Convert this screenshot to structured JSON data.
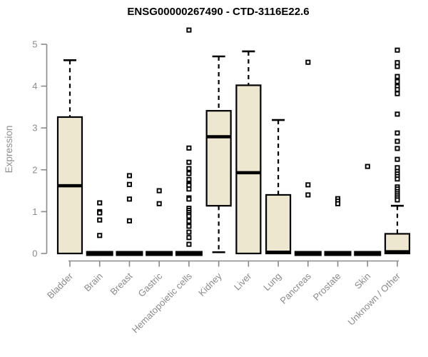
{
  "title": "ENSG00000267490 - CTD-3116E22.6",
  "colors": {
    "background": "#ffffff",
    "box_fill": "#ece7ce",
    "box_stroke": "#000000",
    "median": "#000000",
    "whisker": "#000000",
    "outlier_stroke": "#000000",
    "outlier_fill": "#ffffff",
    "axis": "#8a8a8a",
    "axis_text": "#8a8a8a",
    "title_text": "#000000"
  },
  "chart_data": {
    "type": "boxplot",
    "title": "ENSG00000267490 - CTD-3116E22.6",
    "xlabel": "",
    "ylabel": "Expression",
    "ylim": [
      0,
      5.4
    ],
    "yticks": [
      0,
      1,
      2,
      3,
      4,
      5
    ],
    "grid": false,
    "legend": false,
    "categories": [
      "Bladder",
      "Brain",
      "Breast",
      "Gastric",
      "Hematopoietic cells",
      "Kidney",
      "Liver",
      "Lung",
      "Pancreas",
      "Prostate",
      "Skin",
      "Unknown / Other"
    ],
    "series": [
      {
        "name": "Bladder",
        "q1": 0,
        "median": 1.62,
        "q3": 3.26,
        "whisker_low": 0,
        "whisker_high": 4.62,
        "outliers": []
      },
      {
        "name": "Brain",
        "q1": 0,
        "median": 0,
        "q3": 0,
        "whisker_low": 0,
        "whisker_high": 0,
        "outliers": [
          1.21,
          1.0,
          0.97,
          0.8,
          0.43
        ]
      },
      {
        "name": "Breast",
        "q1": 0,
        "median": 0,
        "q3": 0,
        "whisker_low": 0,
        "whisker_high": 0,
        "outliers": [
          1.86,
          1.65,
          1.3,
          0.78
        ]
      },
      {
        "name": "Gastric",
        "q1": 0,
        "median": 0,
        "q3": 0,
        "whisker_low": 0,
        "whisker_high": 0,
        "outliers": [
          1.5,
          1.19
        ]
      },
      {
        "name": "Hematopoietic cells",
        "q1": 0,
        "median": 0,
        "q3": 0,
        "whisker_low": 0,
        "whisker_high": 0,
        "outliers": [
          5.34,
          2.52,
          2.18,
          2.03,
          1.91,
          1.77,
          1.66,
          1.63,
          1.54,
          1.33,
          1.3,
          1.08,
          1.03,
          0.98,
          0.93,
          0.89,
          0.77,
          0.65,
          0.51,
          0.38,
          0.22
        ]
      },
      {
        "name": "Kidney",
        "q1": 1.14,
        "median": 2.79,
        "q3": 3.41,
        "whisker_low": 0.03,
        "whisker_high": 4.71,
        "outliers": []
      },
      {
        "name": "Liver",
        "q1": 0,
        "median": 1.93,
        "q3": 4.02,
        "whisker_low": 0,
        "whisker_high": 4.83,
        "outliers": []
      },
      {
        "name": "Lung",
        "q1": 0,
        "median": 0.03,
        "q3": 1.4,
        "whisker_low": 0,
        "whisker_high": 3.19,
        "outliers": []
      },
      {
        "name": "Pancreas",
        "q1": 0,
        "median": 0,
        "q3": 0,
        "whisker_low": 0,
        "whisker_high": 0,
        "outliers": [
          4.57,
          1.64,
          1.4
        ]
      },
      {
        "name": "Prostate",
        "q1": 0,
        "median": 0,
        "q3": 0,
        "whisker_low": 0,
        "whisker_high": 0,
        "outliers": [
          1.31,
          1.25,
          1.19
        ]
      },
      {
        "name": "Skin",
        "q1": 0,
        "median": 0,
        "q3": 0,
        "whisker_low": 0,
        "whisker_high": 0,
        "outliers": [
          2.08
        ]
      },
      {
        "name": "Unknown / Other",
        "q1": 0,
        "median": 0.04,
        "q3": 0.47,
        "whisker_low": 0,
        "whisker_high": 1.14,
        "outliers": [
          4.86,
          4.56,
          4.47,
          4.23,
          4.11,
          3.99,
          3.92,
          3.82,
          3.33,
          2.88,
          2.68,
          2.51,
          2.25,
          2.05,
          1.96,
          1.9,
          1.84,
          1.78,
          1.59,
          1.54,
          1.48,
          1.43,
          1.38,
          1.33,
          1.28
        ]
      }
    ]
  }
}
